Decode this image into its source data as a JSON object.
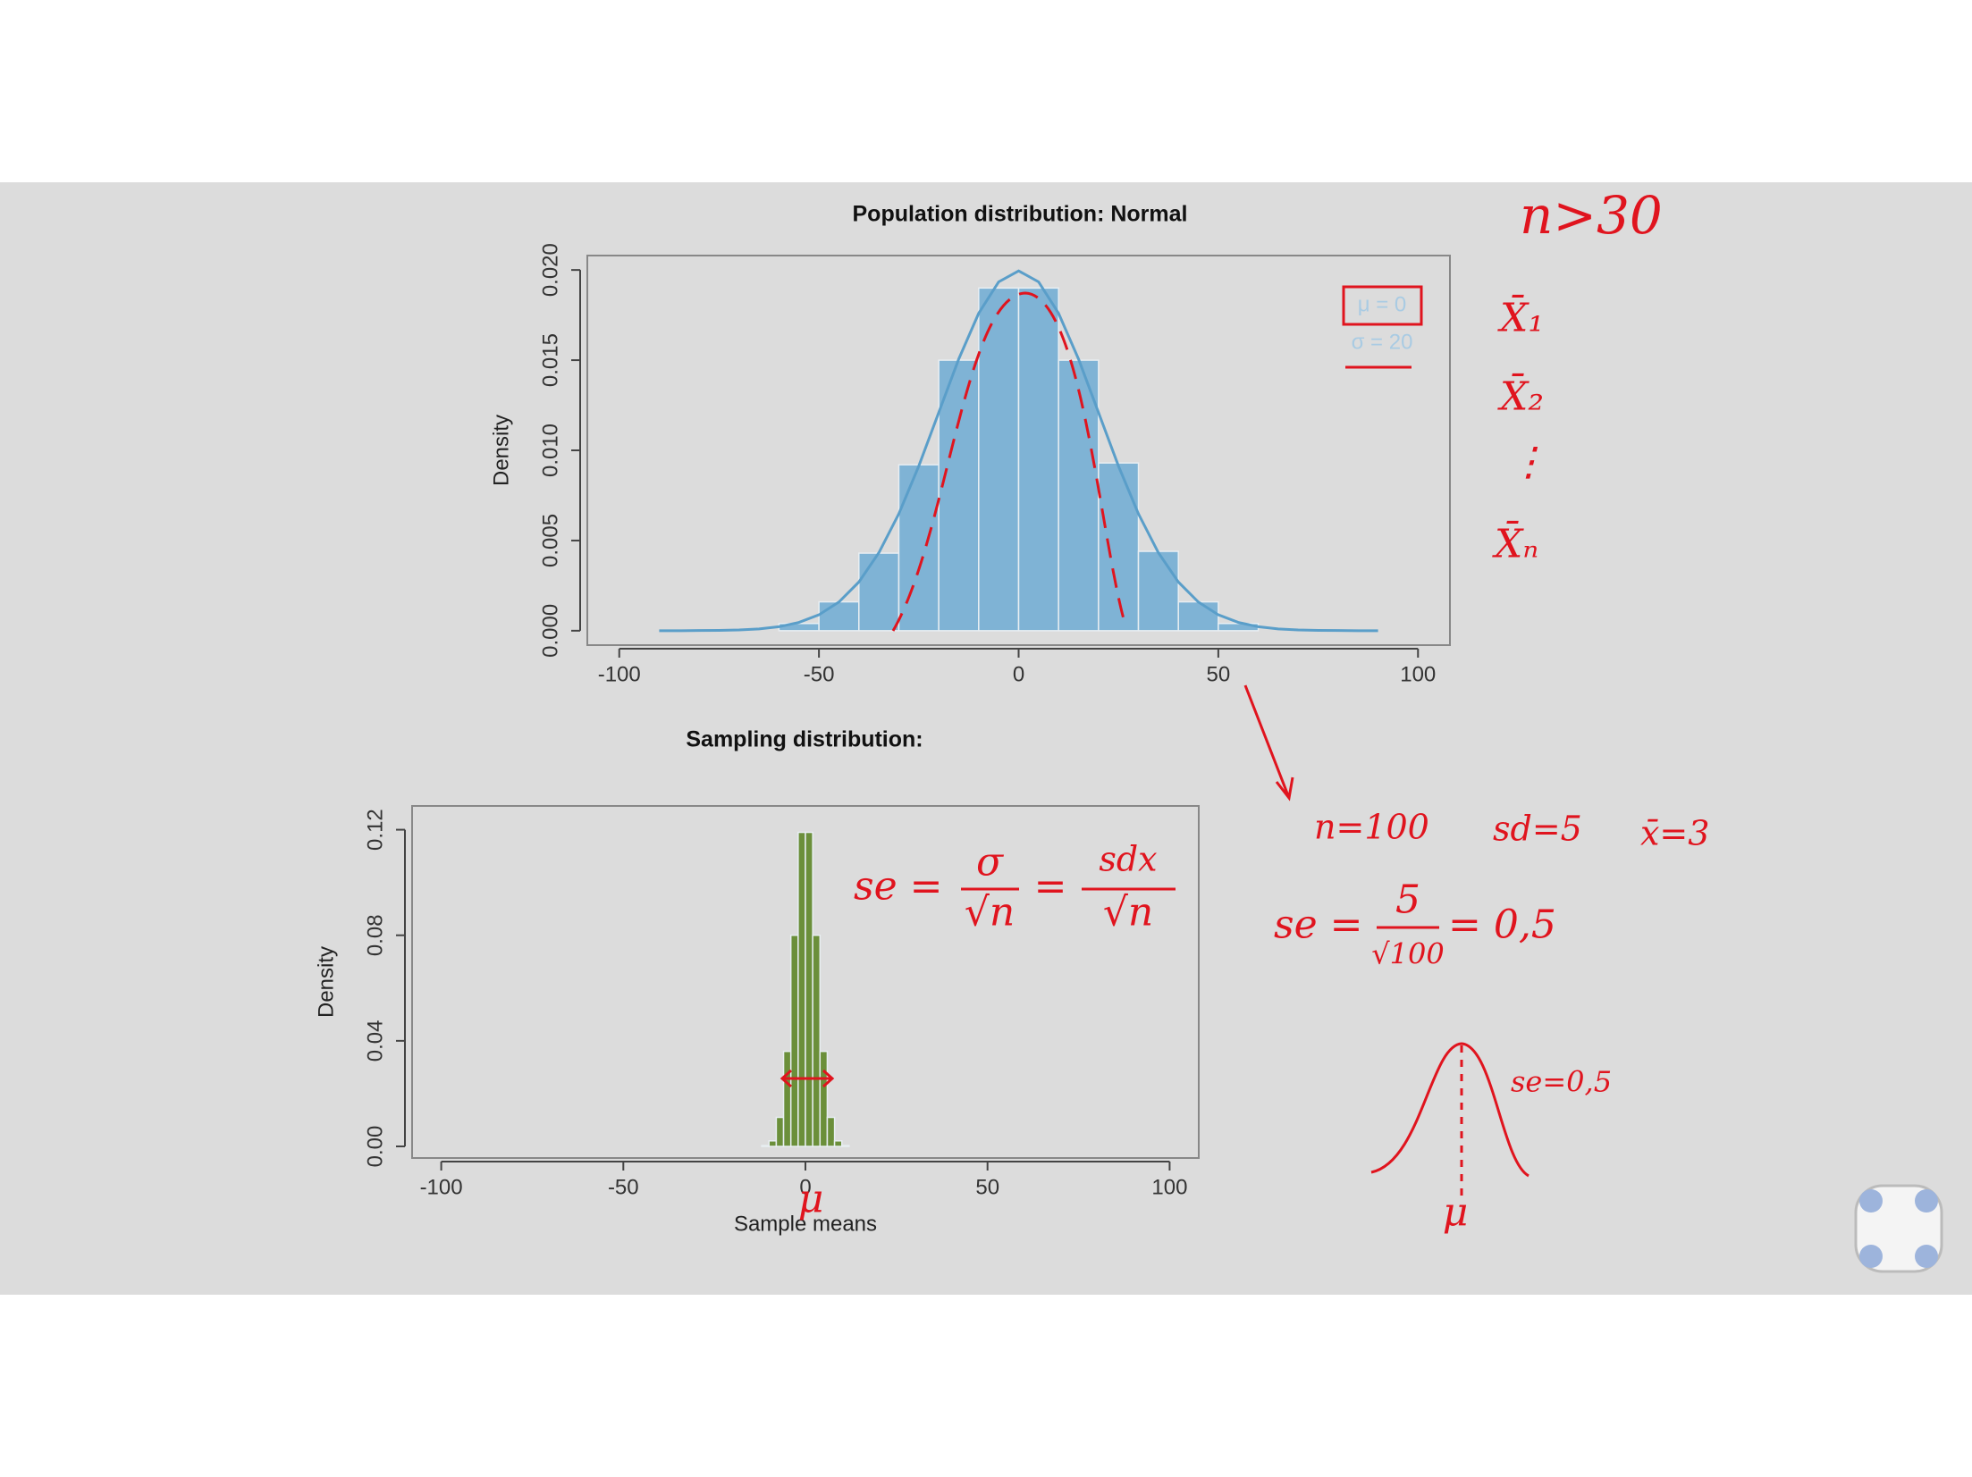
{
  "chart_data": [
    {
      "type": "histogram",
      "title": "Population distribution: Normal",
      "y_label": "Density",
      "bins": [
        -60,
        -50,
        -40,
        -30,
        -20,
        -10,
        0,
        10,
        20,
        30,
        40,
        50,
        60
      ],
      "values": [
        0.0004,
        0.0016,
        0.0043,
        0.0092,
        0.015,
        0.019,
        0.019,
        0.015,
        0.0093,
        0.0044,
        0.0016,
        0.0004
      ],
      "color": "#7fb3d5",
      "curve": {
        "color": "#5a9ec9",
        "x": [
          -90,
          -85,
          -80,
          -75,
          -70,
          -65,
          -60,
          -55,
          -50,
          -45,
          -40,
          -35,
          -30,
          -25,
          -20,
          -15,
          -10,
          -5,
          0,
          5,
          10,
          15,
          20,
          25,
          30,
          35,
          40,
          45,
          50,
          55,
          60,
          65,
          70,
          75,
          80,
          85,
          90
        ],
        "values": [
          0,
          0,
          1e-05,
          2e-05,
          4e-05,
          0.0001,
          0.00022,
          0.00046,
          0.00088,
          0.00159,
          0.0027,
          0.00432,
          0.00648,
          0.00913,
          0.0121,
          0.01506,
          0.0176,
          0.01934,
          0.01995,
          0.01934,
          0.0176,
          0.01506,
          0.0121,
          0.00913,
          0.00648,
          0.00432,
          0.0027,
          0.00159,
          0.00088,
          0.00046,
          0.00022,
          0.0001,
          4e-05,
          2e-05,
          1e-05,
          0,
          0
        ]
      },
      "legend": [
        "μ = 0",
        "σ = 20"
      ],
      "xlim": [
        -108,
        108
      ],
      "xticks": [
        -100,
        -50,
        0,
        50,
        100
      ],
      "ylim": [
        -0.0008,
        0.0208
      ],
      "yticks": [
        {
          "value": 0,
          "label": "0.000"
        },
        {
          "value": 0.005,
          "label": "0.005"
        },
        {
          "value": 0.01,
          "label": "0.010"
        },
        {
          "value": 0.015,
          "label": "0.015"
        },
        {
          "value": 0.02,
          "label": "0.020"
        }
      ]
    },
    {
      "type": "histogram",
      "title": "Sampling distribution:",
      "x_label": "Sample means",
      "y_label": "Density",
      "bins": [
        -12,
        -10,
        -8,
        -6,
        -4,
        -2,
        0,
        2,
        4,
        6,
        8,
        10,
        12
      ],
      "values": [
        0.0003,
        0.0021,
        0.011,
        0.036,
        0.08,
        0.119,
        0.119,
        0.08,
        0.036,
        0.011,
        0.0021,
        0.0003
      ],
      "color": "#6b8f3a",
      "xlim": [
        -108,
        108
      ],
      "xticks": [
        -100,
        -50,
        0,
        50,
        100
      ],
      "ylim": [
        -0.0044,
        0.129
      ],
      "yticks": [
        {
          "value": 0,
          "label": "0.00"
        },
        {
          "value": 0.04,
          "label": "0.04"
        },
        {
          "value": 0.08,
          "label": "0.08"
        },
        {
          "value": 0.12,
          "label": "0.12"
        }
      ]
    }
  ],
  "annotations": {
    "n_rule": "n>30",
    "means": [
      "X̄₁",
      "X̄₂",
      "⋮",
      "X̄ₙ"
    ],
    "sample": [
      "n=100",
      "sd=5",
      "x̄=3"
    ],
    "se_general": {
      "lhs": "se =",
      "num1": "σ",
      "den1": "√n",
      "eq": "=",
      "num2": "sdx",
      "den2": "√n"
    },
    "se_value": {
      "lhs": "se =",
      "num": "5",
      "den": "√100",
      "rhs": "= 0,5"
    },
    "bell_label": "se=0,5",
    "mu_bell": "μ",
    "mu_chart": "μ"
  }
}
